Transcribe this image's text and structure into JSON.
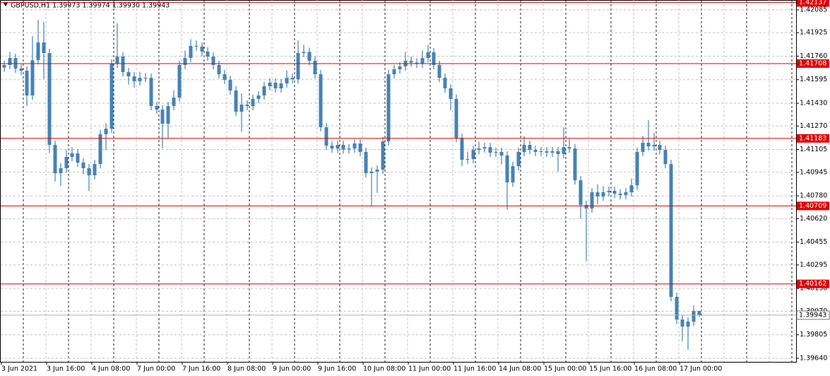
{
  "chart_data": {
    "type": "candlestick",
    "title": "GBPUSD,H1  1.39973 1.39974 1.39930 1.39943",
    "color": "#4682b4",
    "ylim": [
      1.39615,
      1.42154
    ],
    "yticks": [
      1.42085,
      1.41925,
      {
        "value": 1.4176,
        "label": "1.41760"
      },
      1.41595,
      {
        "value": 1.4143,
        "label": "1.41430"
      },
      {
        "value": 1.4127,
        "label": "1.41270"
      },
      1.41105,
      1.40945,
      {
        "value": 1.4078,
        "label": "1.40780"
      },
      {
        "value": 1.4062,
        "label": "1.40620"
      },
      1.40455,
      1.40295,
      {
        "value": 1.4013,
        "label": "1.40130"
      },
      {
        "value": 1.3997,
        "label": "1.39970"
      },
      1.39805,
      {
        "value": 1.3964,
        "label": "1.39640"
      }
    ],
    "xlim": [
      0,
      140
    ],
    "xticks": [
      {
        "value": 0,
        "label": "3 Jun 2021"
      },
      {
        "value": 8,
        "label": "3 Jun 16:00"
      },
      {
        "value": 16,
        "label": "4 Jun 08:00"
      },
      {
        "value": 24,
        "label": "7 Jun 00:00"
      },
      {
        "value": 32,
        "label": "7 Jun 16:00"
      },
      {
        "value": 40,
        "label": "8 Jun 08:00"
      },
      {
        "value": 48,
        "label": "9 Jun 00:00"
      },
      {
        "value": 56,
        "label": "9 Jun 16:00"
      },
      {
        "value": 64,
        "label": "10 Jun 08:00"
      },
      {
        "value": 72,
        "label": "11 Jun 00:00"
      },
      {
        "value": 80,
        "label": "11 Jun 16:00"
      },
      {
        "value": 88,
        "label": "14 Jun 08:00"
      },
      {
        "value": 96,
        "label": "15 Jun 00:00"
      },
      {
        "value": 104,
        "label": "15 Jun 16:00"
      },
      {
        "value": 112,
        "label": "16 Jun 08:00"
      },
      {
        "value": 120,
        "label": "17 Jun 00:00"
      }
    ],
    "grid": true,
    "levels": [
      {
        "value": 1.42137,
        "color": "#e00000"
      },
      {
        "value": 1.41708,
        "color": "#e00000"
      },
      {
        "value": 1.41183,
        "color": "#e00000"
      },
      {
        "value": 1.40709,
        "color": "#e00000"
      },
      {
        "value": 1.40162,
        "color": "#e00000"
      }
    ],
    "last": 1.39943,
    "open": [
      1.4168,
      1.41698,
      1.41747,
      1.41673,
      1.41658,
      1.41484,
      1.41732,
      1.41856,
      1.41782,
      1.41137,
      1.40939,
      1.40974,
      1.41053,
      1.41078,
      1.41013,
      1.40974,
      1.40924,
      1.41003,
      1.41212,
      1.41251,
      1.41708,
      1.41757,
      1.41648,
      1.41618,
      1.41584,
      1.41608,
      1.41608,
      1.4141,
      1.41385,
      1.41286,
      1.4141,
      1.41469,
      1.41698,
      1.41747,
      1.41832,
      1.41827,
      1.41792,
      1.41757,
      1.41698,
      1.41633,
      1.41594,
      1.41519,
      1.4137,
      1.4142,
      1.4141,
      1.4146,
      1.41484,
      1.41549,
      1.41574,
      1.41534,
      1.41569,
      1.41608,
      1.41598,
      1.41782,
      1.4179,
      1.41727,
      1.41633,
      1.41261,
      1.41132,
      1.41112,
      1.41137,
      1.41105,
      1.41112,
      1.41147,
      1.41088,
      1.40939,
      1.4095,
      1.40964,
      1.41162,
      1.41633,
      1.41668,
      1.41688,
      1.41727,
      1.41715,
      1.41708,
      1.41747,
      1.41787,
      1.41698,
      1.41608,
      1.41534,
      1.4146,
      1.41187,
      1.41033,
      1.41038,
      1.41102,
      1.41112,
      1.41122,
      1.41083,
      1.41088,
      1.41063,
      1.40874,
      1.40988,
      1.41088,
      1.41137,
      1.41102,
      1.41088,
      1.41093,
      1.41083,
      1.41093,
      1.41073,
      1.41122,
      1.41112,
      1.40889,
      1.40716,
      1.40691,
      1.40805,
      1.40775,
      1.40805,
      1.40815,
      1.40795,
      1.40785,
      1.40805,
      1.40854,
      1.41088,
      1.41152,
      1.41127,
      1.41137,
      1.41102,
      1.41003,
      1.40071,
      1.39912,
      1.39862,
      1.39897,
      1.39972
    ],
    "high": [
      1.41728,
      1.4179,
      1.41777,
      1.41703,
      1.41688,
      1.419,
      1.42015,
      1.42,
      1.41812,
      1.41167,
      1.4101,
      1.411,
      1.4112,
      1.41108,
      1.41043,
      1.41004,
      1.41033,
      1.41242,
      1.4129,
      1.41738,
      1.4199,
      1.41787,
      1.41678,
      1.41648,
      1.4165,
      1.4164,
      1.41638,
      1.4144,
      1.41415,
      1.4144,
      1.4152,
      1.41728,
      1.418,
      1.4188,
      1.4187,
      1.41857,
      1.41822,
      1.41787,
      1.41728,
      1.41663,
      1.41624,
      1.41549,
      1.415,
      1.4145,
      1.4149,
      1.41514,
      1.4158,
      1.41604,
      1.41604,
      1.41599,
      1.4166,
      1.41638,
      1.41871,
      1.4184,
      1.4182,
      1.41757,
      1.41663,
      1.41291,
      1.41162,
      1.41167,
      1.41167,
      1.41142,
      1.41177,
      1.41177,
      1.41118,
      1.4098,
      1.40994,
      1.41192,
      1.41663,
      1.41698,
      1.41718,
      1.4179,
      1.41757,
      1.41745,
      1.418,
      1.4184,
      1.41817,
      1.41728,
      1.41638,
      1.41564,
      1.4149,
      1.41217,
      1.4109,
      1.41132,
      1.4116,
      1.41152,
      1.41152,
      1.41118,
      1.41118,
      1.41093,
      1.41018,
      1.41118,
      1.412,
      1.41167,
      1.41132,
      1.41123,
      1.41123,
      1.41123,
      1.41123,
      1.4126,
      1.4118,
      1.41142,
      1.40919,
      1.40746,
      1.40835,
      1.4086,
      1.4085,
      1.40845,
      1.40845,
      1.40825,
      1.40835,
      1.409,
      1.41118,
      1.412,
      1.41311,
      1.4122,
      1.41167,
      1.41132,
      1.41033,
      1.40101,
      1.39942,
      1.39927,
      1.4001,
      1.39974
    ],
    "low": [
      1.4165,
      1.41668,
      1.41643,
      1.41628,
      1.4141,
      1.41454,
      1.41702,
      1.416,
      1.4108,
      1.4088,
      1.4085,
      1.40944,
      1.41023,
      1.40983,
      1.4093,
      1.40815,
      1.40894,
      1.40973,
      1.411,
      1.41221,
      1.41678,
      1.41618,
      1.4156,
      1.4154,
      1.41554,
      1.41578,
      1.4138,
      1.41355,
      1.41112,
      1.4118,
      1.4138,
      1.41439,
      1.41668,
      1.41717,
      1.41797,
      1.41762,
      1.41727,
      1.41668,
      1.41603,
      1.41564,
      1.41489,
      1.4134,
      1.4123,
      1.4138,
      1.4138,
      1.4143,
      1.41454,
      1.41519,
      1.41504,
      1.41504,
      1.41539,
      1.41568,
      1.41568,
      1.41752,
      1.41697,
      1.41603,
      1.41231,
      1.41102,
      1.41082,
      1.41082,
      1.41075,
      1.41075,
      1.41082,
      1.41058,
      1.40909,
      1.40706,
      1.408,
      1.40934,
      1.41132,
      1.41603,
      1.41638,
      1.41658,
      1.41685,
      1.41678,
      1.41678,
      1.41717,
      1.41668,
      1.41578,
      1.41504,
      1.4138,
      1.41157,
      1.4099,
      1.41003,
      1.41008,
      1.41072,
      1.41082,
      1.41053,
      1.41053,
      1.41,
      1.40681,
      1.40844,
      1.40958,
      1.41058,
      1.41072,
      1.41058,
      1.41058,
      1.41053,
      1.41053,
      1.4095,
      1.41043,
      1.41082,
      1.40859,
      1.4062,
      1.40319,
      1.40661,
      1.4072,
      1.40745,
      1.40775,
      1.40765,
      1.40755,
      1.40755,
      1.40775,
      1.40824,
      1.41058,
      1.41097,
      1.41097,
      1.41072,
      1.40973,
      1.40041,
      1.39882,
      1.3976,
      1.39699,
      1.39867,
      1.3993
    ],
    "close": [
      1.41698,
      1.41747,
      1.41673,
      1.41658,
      1.41484,
      1.41732,
      1.41856,
      1.41782,
      1.41137,
      1.40939,
      1.40974,
      1.41053,
      1.41078,
      1.41013,
      1.40974,
      1.40924,
      1.41003,
      1.41212,
      1.41251,
      1.41708,
      1.41757,
      1.41648,
      1.41618,
      1.41584,
      1.41608,
      1.41608,
      1.4141,
      1.41385,
      1.41286,
      1.4141,
      1.41469,
      1.41698,
      1.41747,
      1.41832,
      1.41827,
      1.41792,
      1.41757,
      1.41698,
      1.41633,
      1.41594,
      1.41519,
      1.4137,
      1.4142,
      1.4141,
      1.4146,
      1.41484,
      1.41549,
      1.41574,
      1.41534,
      1.41569,
      1.41608,
      1.41598,
      1.41782,
      1.4179,
      1.41727,
      1.41633,
      1.41261,
      1.41132,
      1.41112,
      1.41137,
      1.41105,
      1.41112,
      1.41147,
      1.41088,
      1.40939,
      1.4095,
      1.40964,
      1.41162,
      1.41633,
      1.41668,
      1.41688,
      1.41727,
      1.41715,
      1.41708,
      1.41747,
      1.41787,
      1.41698,
      1.41608,
      1.41534,
      1.4146,
      1.41187,
      1.41033,
      1.41038,
      1.41102,
      1.41112,
      1.41122,
      1.41083,
      1.41088,
      1.41063,
      1.40874,
      1.40988,
      1.41088,
      1.41137,
      1.41102,
      1.41088,
      1.41093,
      1.41083,
      1.41093,
      1.41073,
      1.41122,
      1.41112,
      1.40889,
      1.40716,
      1.40691,
      1.40805,
      1.40775,
      1.40805,
      1.40815,
      1.40795,
      1.40785,
      1.40805,
      1.40854,
      1.41088,
      1.41152,
      1.41127,
      1.41137,
      1.41102,
      1.41003,
      1.40071,
      1.39912,
      1.39862,
      1.39897,
      1.39972,
      1.39943
    ]
  }
}
